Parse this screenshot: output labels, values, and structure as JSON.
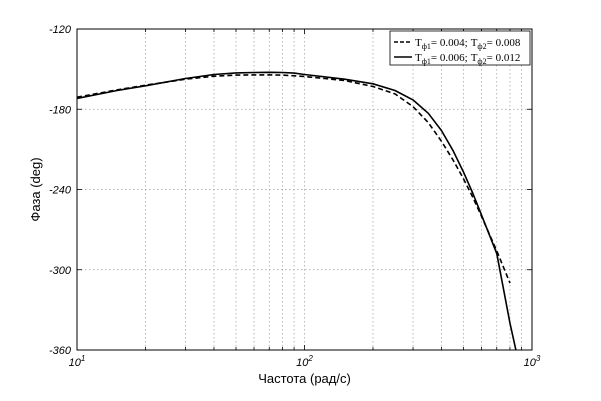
{
  "chart_data": {
    "type": "line",
    "xlabel": "Частота (рад/с)",
    "ylabel": "Фаза (deg)",
    "x_scale": "log",
    "xlim": [
      10,
      1000
    ],
    "ylim": [
      -360,
      -120
    ],
    "x_ticks": [
      {
        "value": 10,
        "base": "10",
        "exp": "1"
      },
      {
        "value": 100,
        "base": "10",
        "exp": "2"
      },
      {
        "value": 1000,
        "base": "10",
        "exp": "3"
      }
    ],
    "y_ticks": [
      {
        "value": -120,
        "label": "-120"
      },
      {
        "value": -180,
        "label": "-180"
      },
      {
        "value": -240,
        "label": "-240"
      },
      {
        "value": -300,
        "label": "-300"
      },
      {
        "value": -360,
        "label": "-360"
      }
    ],
    "grid": true,
    "legend_position": "top-right",
    "series": [
      {
        "name": "Tф1= 0.004; Tф2 = 0.008",
        "legend": {
          "t1_sym": "T",
          "t1_sub": "ф1",
          "t1_val": "= 0.004;",
          "t2_sym": "T",
          "t2_sub": "ф2",
          "t2_val": "= 0.008"
        },
        "line_style": "dashed",
        "color": "#000000",
        "x": [
          10,
          15,
          20,
          30,
          40,
          50,
          60,
          70,
          80,
          90,
          100,
          150,
          200,
          250,
          300,
          350,
          400,
          450,
          500,
          550,
          600,
          700,
          800
        ],
        "y": [
          -171,
          -165.5,
          -162,
          -157.5,
          -155.3,
          -154.5,
          -154.3,
          -154.3,
          -154.5,
          -155,
          -155.5,
          -158.5,
          -163,
          -168.5,
          -178,
          -190,
          -204,
          -218,
          -232,
          -246,
          -260,
          -286,
          -310
        ]
      },
      {
        "name": "Tф1= 0.006; Tф2 = 0.012",
        "legend": {
          "t1_sym": "T",
          "t1_sub": "ф1",
          "t1_val": "= 0.006;",
          "t2_sym": "T",
          "t2_sub": "ф2",
          "t2_val": "= 0.012"
        },
        "line_style": "solid",
        "color": "#000000",
        "x": [
          10,
          15,
          20,
          30,
          40,
          50,
          60,
          70,
          80,
          90,
          100,
          150,
          200,
          250,
          300,
          350,
          400,
          450,
          500,
          550,
          600,
          700,
          800,
          850
        ],
        "y": [
          -172,
          -166,
          -162.5,
          -157,
          -154,
          -152.8,
          -152.5,
          -152.4,
          -152.5,
          -153,
          -154,
          -157.5,
          -161,
          -166,
          -173,
          -183,
          -196,
          -211,
          -227,
          -243,
          -259,
          -288,
          -340,
          -360
        ]
      }
    ]
  }
}
